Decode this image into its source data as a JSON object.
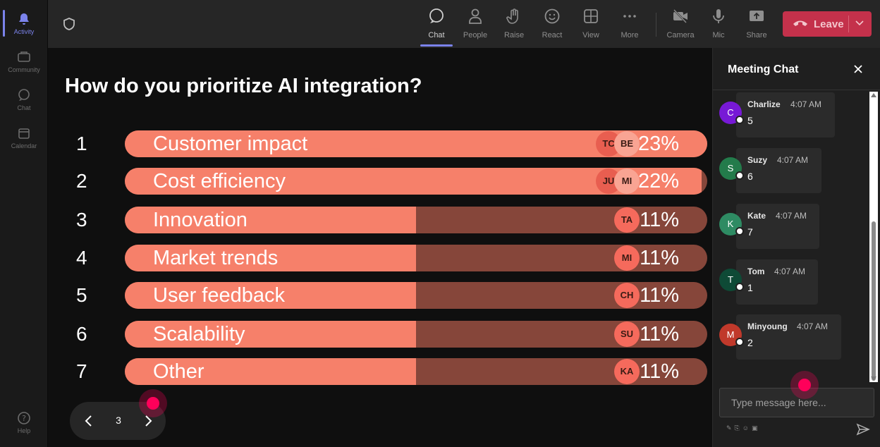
{
  "rail": {
    "items": [
      {
        "label": "Activity",
        "icon": "bell-icon",
        "active": true
      },
      {
        "label": "Community",
        "icon": "community-icon"
      },
      {
        "label": "Chat",
        "icon": "chat-icon"
      },
      {
        "label": "Calendar",
        "icon": "calendar-icon"
      }
    ],
    "help": {
      "label": "Help",
      "icon": "help-icon"
    }
  },
  "toolbar": {
    "chat": "Chat",
    "people": "People",
    "raise": "Raise",
    "react": "React",
    "view": "View",
    "more": "More",
    "camera": "Camera",
    "mic": "Mic",
    "share": "Share",
    "leave": "Leave"
  },
  "poll": {
    "question": "How do you prioritize AI integration?",
    "options": [
      {
        "num": "1",
        "label": "Customer impact",
        "pct": "23%",
        "fill": 1.0,
        "avatars": [
          "TC",
          "BE"
        ]
      },
      {
        "num": "2",
        "label": "Cost efficiency",
        "pct": "22%",
        "fill": 0.99,
        "avatars": [
          "JU",
          "MI"
        ]
      },
      {
        "num": "3",
        "label": "Innovation",
        "pct": "11%",
        "fill": 0.5,
        "avatars": [
          "TA"
        ]
      },
      {
        "num": "4",
        "label": "Market trends",
        "pct": "11%",
        "fill": 0.5,
        "avatars": [
          "MI"
        ]
      },
      {
        "num": "5",
        "label": "User feedback",
        "pct": "11%",
        "fill": 0.5,
        "avatars": [
          "CH"
        ]
      },
      {
        "num": "6",
        "label": "Scalability",
        "pct": "11%",
        "fill": 0.5,
        "avatars": [
          "SU"
        ]
      },
      {
        "num": "7",
        "label": "Other",
        "pct": "11%",
        "fill": 0.5,
        "avatars": [
          "KA"
        ]
      }
    ],
    "page": "3"
  },
  "chat": {
    "title": "Meeting Chat",
    "messages": [
      {
        "initial": "C",
        "name": "Charlize",
        "time": "4:07 AM",
        "text": "5",
        "color": "#7719d6"
      },
      {
        "initial": "S",
        "name": "Suzy",
        "time": "4:07 AM",
        "text": "6",
        "color": "#237b4b"
      },
      {
        "initial": "K",
        "name": "Kate",
        "time": "4:07 AM",
        "text": "7",
        "color": "#2e8b63"
      },
      {
        "initial": "T",
        "name": "Tom",
        "time": "4:07 AM",
        "text": "1",
        "color": "#0e4a36"
      },
      {
        "initial": "M",
        "name": "Minyoung",
        "time": "4:07 AM",
        "text": "2",
        "color": "#c0392b"
      }
    ],
    "input_placeholder": "Type message here..."
  }
}
